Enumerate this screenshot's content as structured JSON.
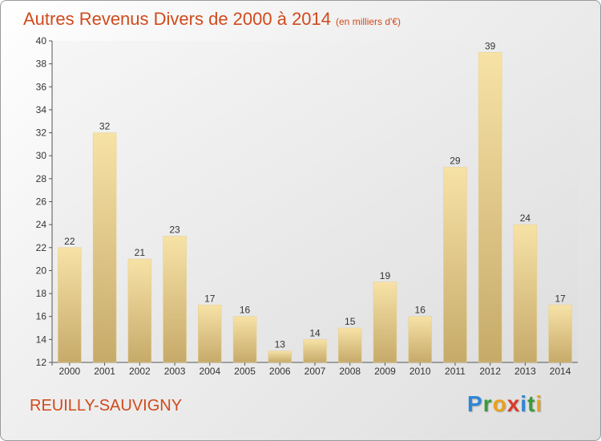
{
  "header": {
    "title": "Autres Revenus Divers de 2000 à 2014",
    "unit": "(en milliers d'€)"
  },
  "footer": {
    "commune": "REUILLY-SAUVIGNY"
  },
  "logo": {
    "letters": [
      {
        "char": "P",
        "color": "#2f86d6"
      },
      {
        "char": "r",
        "color": "#3a9a3a"
      },
      {
        "char": "o",
        "color": "#e8a21c"
      },
      {
        "char": "x",
        "color": "#d93a2a"
      },
      {
        "char": "i",
        "color": "#2f86d6"
      },
      {
        "char": "t",
        "color": "#3a9a3a"
      },
      {
        "char": "i",
        "color": "#e8a21c"
      }
    ]
  },
  "chart_data": {
    "type": "bar",
    "title": "Autres Revenus Divers de 2000 à 2014",
    "subtitle": "(en milliers d'€)",
    "categories": [
      "2000",
      "2001",
      "2002",
      "2003",
      "2004",
      "2005",
      "2006",
      "2007",
      "2008",
      "2009",
      "2010",
      "2011",
      "2012",
      "2013",
      "2014"
    ],
    "values": [
      22,
      32,
      21,
      23,
      17,
      16,
      13,
      14,
      15,
      19,
      16,
      29,
      39,
      24,
      17
    ],
    "yticks": [
      12,
      14,
      16,
      18,
      20,
      22,
      24,
      26,
      28,
      30,
      32,
      34,
      36,
      38,
      40
    ],
    "ylim": [
      12,
      40
    ],
    "grid": false,
    "legend": "none",
    "bar_color_light": "#f6deA0",
    "bar_color_dark": "#c8ad6c"
  }
}
